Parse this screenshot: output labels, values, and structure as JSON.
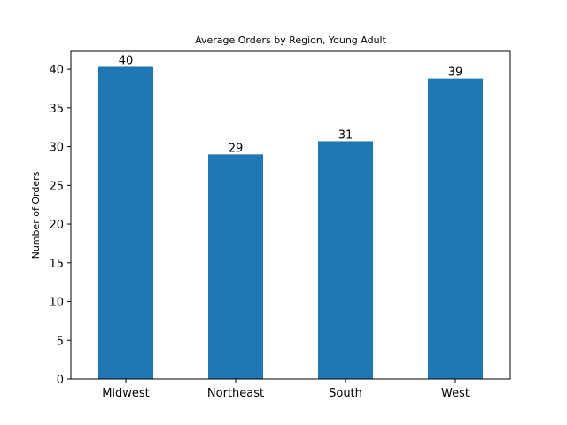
{
  "chart_data": {
    "type": "bar",
    "title": "Average Orders by Region, Young Adult",
    "xlabel": "",
    "ylabel": "Number of Orders",
    "categories": [
      "Midwest",
      "Northeast",
      "South",
      "West"
    ],
    "values": [
      40.3,
      29.0,
      30.7,
      38.8
    ],
    "data_labels": [
      "40",
      "29",
      "31",
      "39"
    ],
    "ylim": [
      0,
      42.3
    ],
    "yticks": [
      0,
      5,
      10,
      15,
      20,
      25,
      30,
      35,
      40
    ],
    "grid": false,
    "legend": "none",
    "bar_color": "#1f77b4"
  }
}
